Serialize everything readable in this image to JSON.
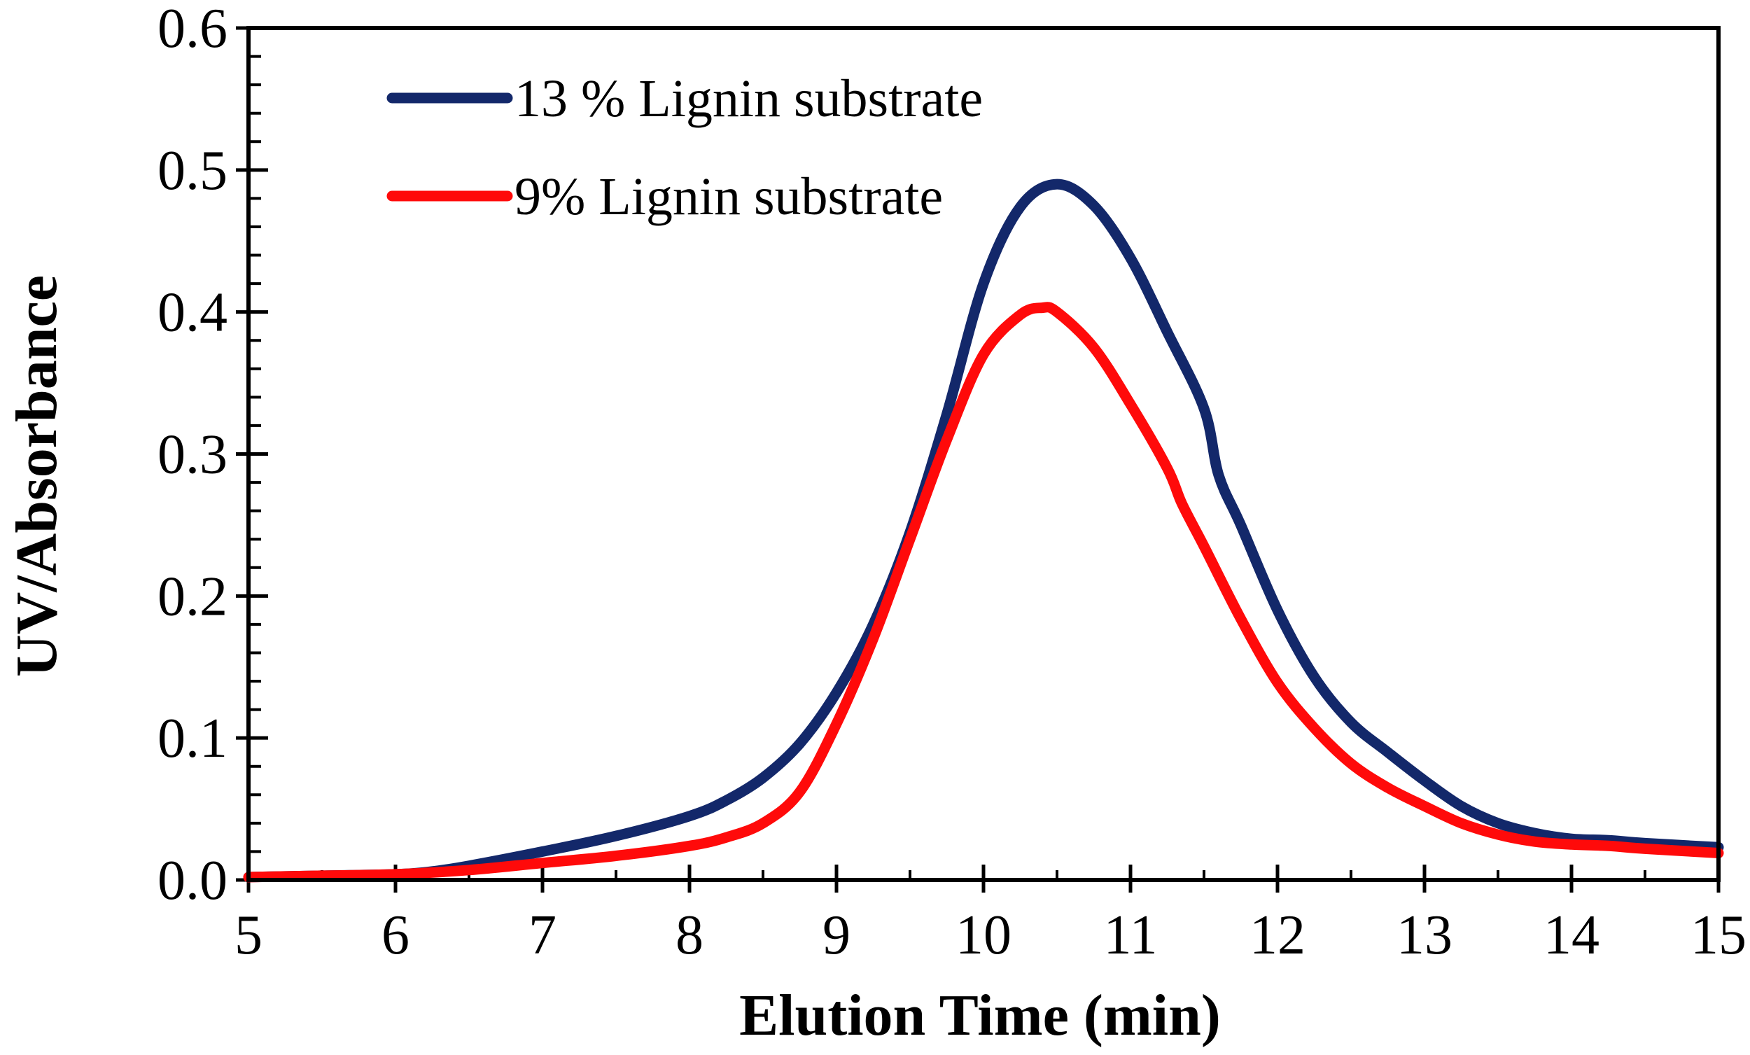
{
  "chart_data": {
    "type": "line",
    "title": "",
    "xlabel": "Elution Time (min)",
    "ylabel": "UV/Absorbance",
    "xlim": [
      5,
      15
    ],
    "ylim": [
      0.0,
      0.6
    ],
    "xticks": [
      5,
      6,
      7,
      8,
      9,
      10,
      11,
      12,
      13,
      14,
      15
    ],
    "xtick_labels": [
      "5",
      "6",
      "7",
      "8",
      "9",
      "10",
      "11",
      "12",
      "13",
      "14",
      "15"
    ],
    "yticks": [
      0.0,
      0.1,
      0.2,
      0.3,
      0.4,
      0.5,
      0.6
    ],
    "ytick_labels": [
      "0.0",
      "0.1",
      "0.2",
      "0.3",
      "0.4",
      "0.5",
      "0.6"
    ],
    "yminor_step": 0.02,
    "xminor_step": 0.5,
    "grid": false,
    "legend_position": "top-left",
    "series": [
      {
        "name": "13 % Lignin substrate",
        "color": "#13286a",
        "x": [
          5.0,
          5.5,
          6.0,
          6.25,
          6.5,
          7.0,
          7.5,
          8.0,
          8.25,
          8.5,
          8.75,
          9.0,
          9.25,
          9.5,
          9.75,
          10.0,
          10.25,
          10.5,
          10.75,
          11.0,
          11.25,
          11.5,
          11.6,
          11.75,
          12.0,
          12.25,
          12.5,
          12.75,
          13.0,
          13.25,
          13.5,
          13.75,
          14.0,
          14.25,
          14.5,
          15.0
        ],
        "y": [
          0.002,
          0.003,
          0.004,
          0.006,
          0.01,
          0.02,
          0.031,
          0.045,
          0.056,
          0.072,
          0.096,
          0.132,
          0.18,
          0.245,
          0.328,
          0.42,
          0.474,
          0.49,
          0.475,
          0.438,
          0.386,
          0.332,
          0.285,
          0.25,
          0.19,
          0.143,
          0.111,
          0.09,
          0.07,
          0.052,
          0.04,
          0.033,
          0.029,
          0.028,
          0.026,
          0.023
        ]
      },
      {
        "name": "9% Lignin substrate",
        "color": "#ff0a0a",
        "x": [
          5.0,
          5.5,
          6.0,
          6.5,
          7.0,
          7.5,
          8.0,
          8.25,
          8.5,
          8.75,
          9.0,
          9.25,
          9.5,
          9.75,
          10.0,
          10.25,
          10.4,
          10.5,
          10.75,
          11.0,
          11.25,
          11.35,
          11.5,
          11.75,
          12.0,
          12.25,
          12.5,
          12.75,
          13.0,
          13.25,
          13.5,
          13.75,
          14.0,
          14.25,
          14.5,
          15.0
        ],
        "y": [
          0.002,
          0.003,
          0.004,
          0.007,
          0.012,
          0.017,
          0.024,
          0.03,
          0.04,
          0.062,
          0.11,
          0.17,
          0.24,
          0.31,
          0.37,
          0.398,
          0.403,
          0.4,
          0.375,
          0.335,
          0.29,
          0.265,
          0.235,
          0.184,
          0.139,
          0.107,
          0.082,
          0.065,
          0.052,
          0.04,
          0.032,
          0.027,
          0.025,
          0.024,
          0.022,
          0.019
        ]
      }
    ]
  }
}
